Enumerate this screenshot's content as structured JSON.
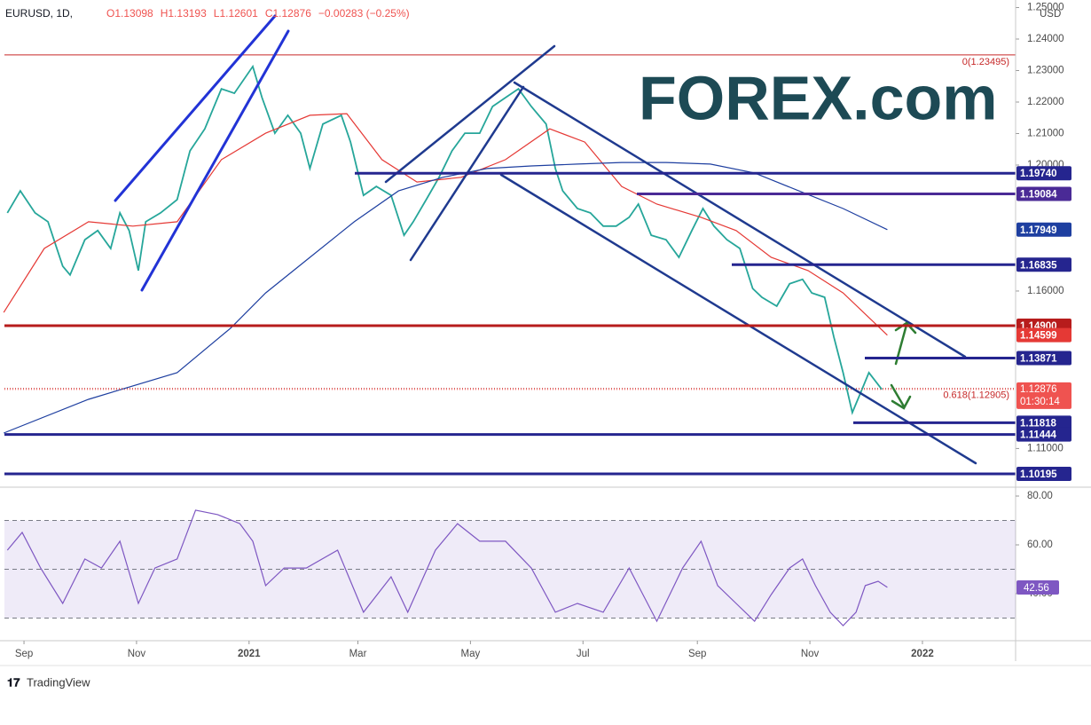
{
  "chart_data": [
    {
      "type": "line",
      "title": "EURUSD, 1D,",
      "ohlc": [
        "O1.13098",
        "H1.13193",
        "L1.12601",
        "C1.12876",
        "−0.00283 (−0.25%)"
      ],
      "currency": "USD",
      "xlim": [
        -10.6,
        537.5
      ],
      "xticks": [
        {
          "value": 0,
          "label": "Sep"
        },
        {
          "value": 61,
          "label": "Nov"
        },
        {
          "value": 122,
          "label": "2021"
        },
        {
          "value": 181,
          "label": "Mar"
        },
        {
          "value": 242,
          "label": "May"
        },
        {
          "value": 303,
          "label": "Jul"
        },
        {
          "value": 365,
          "label": "Sep"
        },
        {
          "value": 426,
          "label": "Nov"
        },
        {
          "value": 487,
          "label": "2022"
        }
      ],
      "ylim": [
        1.098,
        1.2524
      ],
      "yticks": [
        {
          "value": 1.25,
          "label": "1.25000"
        },
        {
          "value": 1.24,
          "label": "1.24000"
        },
        {
          "value": 1.23,
          "label": "1.23000"
        },
        {
          "value": 1.22,
          "label": "1.22000"
        },
        {
          "value": 1.21,
          "label": "1.21000"
        },
        {
          "value": 1.2,
          "label": "1.20000"
        },
        {
          "value": 1.16,
          "label": "1.16000"
        },
        {
          "value": 1.11,
          "label": "1.11000"
        }
      ],
      "series": [
        {
          "color": "#26a69a",
          "x": [
            -9,
            -2,
            6,
            13,
            21,
            25,
            33,
            40,
            47,
            52,
            57,
            62,
            66,
            74,
            83,
            90,
            98,
            107,
            114,
            124,
            129,
            136,
            143,
            150,
            155,
            162,
            172,
            177,
            184,
            191,
            199,
            206,
            211,
            218,
            225,
            232,
            239,
            247,
            254,
            261,
            268,
            275,
            283,
            288,
            292,
            300,
            307,
            314,
            321,
            328,
            333,
            340,
            348,
            355,
            362,
            368,
            374,
            381,
            388,
            395,
            400,
            408,
            415,
            422,
            427,
            434,
            439,
            444,
            449,
            453,
            458,
            465
          ],
          "values": [
            1.1848,
            1.1918,
            1.1848,
            1.182,
            1.1679,
            1.1651,
            1.1763,
            1.1792,
            1.1735,
            1.1848,
            1.1792,
            1.1665,
            1.182,
            1.1848,
            1.189,
            1.2045,
            1.2115,
            1.2242,
            1.2228,
            1.2313,
            1.2214,
            1.2101,
            1.2158,
            1.2101,
            1.1989,
            1.213,
            1.2158,
            1.2073,
            1.1904,
            1.1932,
            1.1904,
            1.1777,
            1.182,
            1.189,
            1.1961,
            1.2045,
            1.2101,
            1.2101,
            1.2186,
            1.2214,
            1.2242,
            1.2186,
            1.213,
            1.1989,
            1.1918,
            1.1862,
            1.1848,
            1.1806,
            1.1806,
            1.1834,
            1.1876,
            1.1777,
            1.1763,
            1.1707,
            1.1792,
            1.1862,
            1.1806,
            1.1763,
            1.1735,
            1.1608,
            1.158,
            1.1552,
            1.1623,
            1.1637,
            1.1594,
            1.158,
            1.1454,
            1.1341,
            1.1214,
            1.127,
            1.1341,
            1.12876
          ]
        },
        {
          "color": "#e53935",
          "x": [
            -11,
            11,
            35,
            59,
            83,
            107,
            131,
            155,
            175,
            194,
            213,
            237,
            261,
            285,
            304,
            324,
            343,
            367,
            386,
            405,
            425,
            444,
            468
          ],
          "values": [
            1.1532,
            1.1735,
            1.182,
            1.1806,
            1.182,
            1.2017,
            1.2101,
            1.2158,
            1.2163,
            1.2017,
            1.1946,
            1.1961,
            1.2017,
            1.2115,
            1.2073,
            1.1932,
            1.1876,
            1.1834,
            1.1792,
            1.1707,
            1.1665,
            1.1594,
            1.14599
          ],
          "last_label": "1.14599"
        },
        {
          "color": "#1e3fa0",
          "x": [
            -11,
            35,
            83,
            112,
            131,
            155,
            179,
            203,
            227,
            251,
            275,
            300,
            324,
            348,
            372,
            396,
            420,
            444,
            468
          ],
          "values": [
            1.1149,
            1.1256,
            1.1341,
            1.1482,
            1.1594,
            1.1707,
            1.182,
            1.1918,
            1.1961,
            1.1989,
            1.1997,
            1.2003,
            1.2008,
            1.2008,
            1.2003,
            1.1975,
            1.1918,
            1.1862,
            1.17949
          ],
          "last_label": "1.17949"
        }
      ],
      "levels": [
        {
          "value": 1.1974,
          "label": "1.19740",
          "color": "#25258f"
        },
        {
          "value": 1.19084,
          "label": "1.19084",
          "color": "#4a2a96"
        },
        {
          "value": 1.16835,
          "label": "1.16835",
          "color": "#25258f"
        },
        {
          "value": 1.149,
          "label": "1.14900",
          "color": "#b71c1c"
        },
        {
          "value": 1.13871,
          "label": "1.13871",
          "color": "#25258f"
        },
        {
          "value": 1.11818,
          "label": "1.11818",
          "color": "#25258f"
        },
        {
          "value": 1.11444,
          "label": "1.11444",
          "color": "#25258f"
        },
        {
          "value": 1.10195,
          "label": "1.10195",
          "color": "#25258f"
        }
      ],
      "fib": [
        {
          "value": 1.23495,
          "label": "0(1.23495)"
        },
        {
          "value": 1.12905,
          "label": "0.618(1.12905)"
        }
      ],
      "price_label": {
        "value": 1.12876,
        "label": "1.12876",
        "timer": "01:30:14",
        "color": "#ef5350"
      }
    },
    {
      "type": "line",
      "xlim": [
        -10.6,
        537.5
      ],
      "ylim": [
        21.45,
        83.27
      ],
      "yticks": [
        {
          "value": 80,
          "label": "80.00"
        },
        {
          "value": 60,
          "label": "60.00"
        },
        {
          "value": 40,
          "label": "40.00"
        }
      ],
      "band": [
        30,
        70
      ],
      "guides": [
        70,
        50,
        30
      ],
      "series": [
        {
          "color": "#7e57c2",
          "x": [
            -9,
            -1,
            9,
            21,
            33,
            42,
            52,
            62,
            71,
            83,
            93,
            105,
            117,
            124,
            131,
            141,
            153,
            170,
            184,
            199,
            208,
            223,
            235,
            247,
            261,
            275,
            288,
            300,
            314,
            328,
            343,
            357,
            367,
            376,
            386,
            396,
            405,
            415,
            422,
            429,
            437,
            444,
            451,
            456,
            463,
            468
          ],
          "values": [
            57.8,
            65.1,
            50.5,
            36.0,
            54.2,
            50.5,
            61.5,
            36.0,
            50.5,
            54.2,
            74.2,
            72.4,
            68.7,
            61.5,
            43.3,
            50.5,
            50.5,
            57.8,
            32.4,
            46.9,
            32.4,
            57.8,
            68.7,
            61.5,
            61.5,
            50.5,
            32.4,
            36.0,
            32.4,
            50.5,
            28.7,
            50.5,
            61.5,
            43.3,
            36.0,
            28.7,
            39.6,
            50.5,
            54.2,
            43.3,
            32.4,
            26.9,
            32.4,
            43.3,
            45.1,
            42.56
          ],
          "last_label": "42.56"
        }
      ]
    }
  ],
  "watermark": "FOREX.com",
  "footer": "TradingView"
}
